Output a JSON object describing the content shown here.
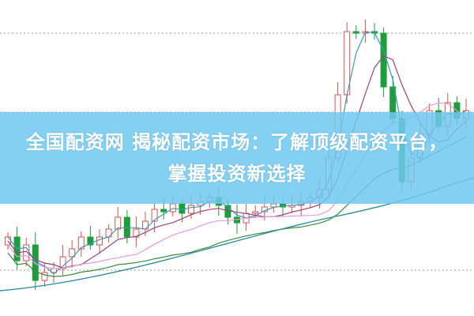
{
  "headline": {
    "line1": "全国配资网 揭秘配资市场：了解顶级配资平台，",
    "line2": "掌握投资新选择"
  },
  "colors": {
    "banner": "#6ec8f0",
    "up_candle": "#d9534f",
    "down_candle": "#1e9e3a",
    "ma_short": "#3a9ab8",
    "ma_mid": "#a0407a",
    "ma_long": "#3b8a3b",
    "ma_pink": "#e59ad8",
    "ma_base": "#2f8f9f"
  },
  "background_image": "stock candlestick chart with moving averages"
}
